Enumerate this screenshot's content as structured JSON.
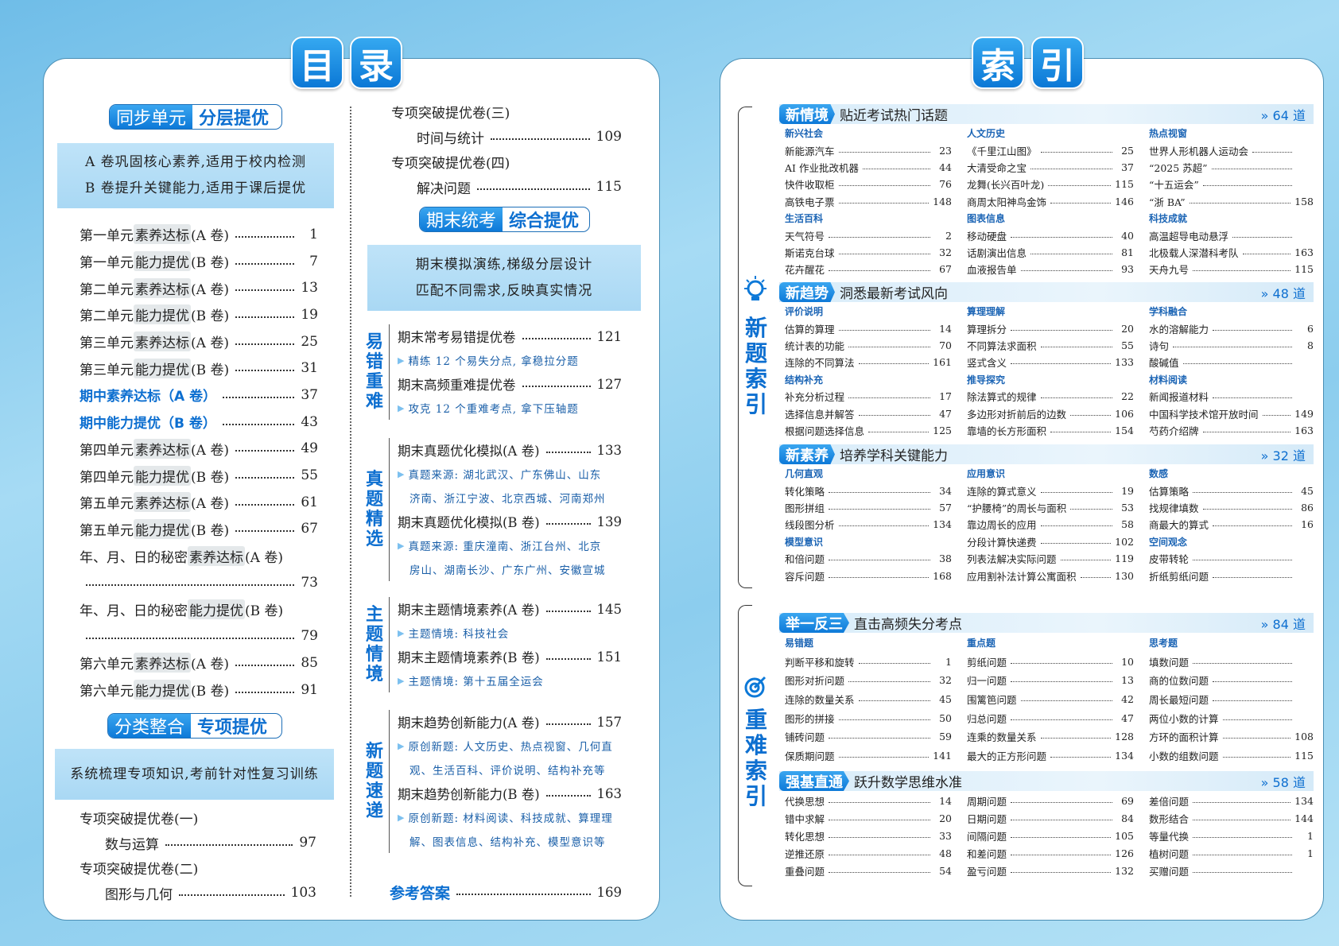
{
  "toc": {
    "title": [
      "目",
      "录"
    ],
    "sec1": {
      "a": "同步单元",
      "b": "分层提优"
    },
    "sec1_box": [
      "A 卷巩固核心素养,适用于校内检测",
      "B 卷提升关键能力,适用于课后提优"
    ],
    "units": [
      {
        "pre": "第一单元 ",
        "tag": "素养达标",
        "suf": "(A 卷)",
        "page": "1"
      },
      {
        "pre": "第一单元 ",
        "tag": "能力提优",
        "suf": "(B 卷)",
        "page": "7"
      },
      {
        "pre": "第二单元 ",
        "tag": "素养达标",
        "suf": "(A 卷)",
        "page": "13"
      },
      {
        "pre": "第二单元 ",
        "tag": "能力提优",
        "suf": "(B 卷)",
        "page": "19"
      },
      {
        "pre": "第三单元 ",
        "tag": "素养达标",
        "suf": "(A 卷)",
        "page": "25"
      },
      {
        "pre": "第三单元 ",
        "tag": "能力提优",
        "suf": "(B 卷)",
        "page": "31"
      },
      {
        "pre": "期中素养达标（A 卷）",
        "tag": "",
        "suf": "",
        "page": "37",
        "blue": true
      },
      {
        "pre": "期中能力提优（B 卷）",
        "tag": "",
        "suf": "",
        "page": "43",
        "blue": true
      },
      {
        "pre": "第四单元 ",
        "tag": "素养达标",
        "suf": "(A 卷)",
        "page": "49"
      },
      {
        "pre": "第四单元 ",
        "tag": "能力提优",
        "suf": "(B 卷)",
        "page": "55"
      },
      {
        "pre": "第五单元 ",
        "tag": "素养达标",
        "suf": "(A 卷)",
        "page": "61"
      },
      {
        "pre": "第五单元 ",
        "tag": "能力提优",
        "suf": "(B 卷)",
        "page": "67"
      },
      {
        "pre": "年、月、日的秘密 ",
        "tag": "素养达标",
        "suf": "(A 卷)",
        "page": "73",
        "wrap": true
      },
      {
        "pre": "年、月、日的秘密 ",
        "tag": "能力提优",
        "suf": "(B 卷)",
        "page": "79",
        "wrap": true
      },
      {
        "pre": "第六单元 ",
        "tag": "素养达标",
        "suf": "(A 卷)",
        "page": "85"
      },
      {
        "pre": "第六单元 ",
        "tag": "能力提优",
        "suf": "(B 卷)",
        "page": "91"
      }
    ],
    "sec2": {
      "a": "分类整合",
      "b": "专项提优"
    },
    "sec2_box": [
      "系统梳理专项知识,考前针对性复习训练"
    ],
    "special_left": [
      {
        "title": "专项突破提优卷(一)",
        "sub": "数与运算",
        "page": "97"
      },
      {
        "title": "专项突破提优卷(二)",
        "sub": "图形与几何",
        "page": "103"
      }
    ],
    "special_right": [
      {
        "title": "专项突破提优卷(三)",
        "sub": "时间与统计",
        "page": "109"
      },
      {
        "title": "专项突破提优卷(四)",
        "sub": "解决问题",
        "page": "115"
      }
    ],
    "sec3": {
      "a": "期末统考",
      "b": "综合提优"
    },
    "sec3_box": [
      "期末模拟演练,梯级分层设计",
      "匹配不同需求,反映真实情况"
    ],
    "groups": [
      {
        "label": "易错重难",
        "items": [
          {
            "title": "期末常考易错提优卷",
            "page": "121",
            "notes": [
              "精练 12 个易失分点, 拿稳拉分题"
            ]
          },
          {
            "title": "期末高频重难提优卷",
            "page": "127",
            "notes": [
              "攻克 12 个重难考点, 拿下压轴题"
            ]
          }
        ]
      },
      {
        "label": "真题精选",
        "items": [
          {
            "title": "期末真题优化模拟(A 卷)",
            "page": "133",
            "notes": [
              "真题来源: 湖北武汉、广东佛山、山东",
              "济南、浙江宁波、北京西城、河南郑州"
            ]
          },
          {
            "title": "期末真题优化模拟(B 卷)",
            "page": "139",
            "notes": [
              "真题来源: 重庆潼南、浙江台州、北京",
              "房山、湖南长沙、广东广州、安徽宣城"
            ]
          }
        ]
      },
      {
        "label": "主题情境",
        "items": [
          {
            "title": "期末主题情境素养(A 卷)",
            "page": "145",
            "notes": [
              "主题情境: 科技社会"
            ]
          },
          {
            "title": "期末主题情境素养(B 卷)",
            "page": "151",
            "notes": [
              "主题情境: 第十五届全运会"
            ]
          }
        ]
      },
      {
        "label": "新题速递",
        "items": [
          {
            "title": "期末趋势创新能力(A 卷)",
            "page": "157",
            "notes": [
              "原创新题: 人文历史、热点视窗、几何直",
              "观、生活百科、评价说明、结构补充等"
            ]
          },
          {
            "title": "期末趋势创新能力(B 卷)",
            "page": "163",
            "notes": [
              "原创新题: 材料阅读、科技成就、算理理",
              "解、图表信息、结构补充、模型意识等"
            ]
          }
        ]
      }
    ],
    "answers": {
      "label": "参考答案",
      "page": "169"
    }
  },
  "index": {
    "title": [
      "索",
      "引"
    ],
    "side_labels": [
      "新题索引",
      "重难索引"
    ],
    "icons": [
      "lightbulb-icon",
      "target-icon"
    ],
    "sections": [
      {
        "tag": "新情境",
        "desc": "贴近考试热门话题",
        "count": "» 64 道",
        "columns": [
          [
            {
              "cat": "新兴社会"
            },
            {
              "t": "新能源汽车",
              "p": "23"
            },
            {
              "t": "AI 作业批改机器",
              "p": "44"
            },
            {
              "t": "快件收取柜",
              "p": "76"
            },
            {
              "t": "高铁电子票",
              "p": "148"
            },
            {
              "cat": "生活百科"
            },
            {
              "t": "天气符号",
              "p": "2"
            },
            {
              "t": "斯诺克台球",
              "p": "32"
            },
            {
              "t": "花卉醒花",
              "p": "67"
            }
          ],
          [
            {
              "cat": "人文历史"
            },
            {
              "t": "《千里江山图》",
              "p": "25"
            },
            {
              "t": "大清受命之宝",
              "p": "37"
            },
            {
              "t": "龙舞(长兴百叶龙)",
              "p": "115"
            },
            {
              "t": "商周太阳神鸟金饰",
              "p": "146"
            },
            {
              "cat": "图表信息"
            },
            {
              "t": "移动硬盘",
              "p": "40"
            },
            {
              "t": "话剧演出信息",
              "p": "81"
            },
            {
              "t": "血液报告单",
              "p": "93"
            }
          ],
          [
            {
              "cat": "热点视窗"
            },
            {
              "t": "世界人形机器人运动会",
              "p": ""
            },
            {
              "t": "“2025 苏超”",
              "p": ""
            },
            {
              "t": "“十五运会”",
              "p": ""
            },
            {
              "t": "“浙 BA”",
              "p": "158"
            },
            {
              "cat": "科技成就"
            },
            {
              "t": "高温超导电动悬浮",
              "p": ""
            },
            {
              "t": "北极载人深潜科考队",
              "p": "163"
            },
            {
              "t": "天舟九号",
              "p": "115"
            }
          ]
        ]
      },
      {
        "tag": "新趋势",
        "desc": "洞悉最新考试风向",
        "count": "» 48 道",
        "columns": [
          [
            {
              "cat": "评价说明"
            },
            {
              "t": "估算的算理",
              "p": "14"
            },
            {
              "t": "统计表的功能",
              "p": "70"
            },
            {
              "t": "连除的不同算法",
              "p": "161"
            },
            {
              "cat": "结构补充"
            },
            {
              "t": "补充分析过程",
              "p": "17"
            },
            {
              "t": "选择信息并解答",
              "p": "47"
            },
            {
              "t": "根据问题选择信息",
              "p": "125"
            }
          ],
          [
            {
              "cat": "算理理解"
            },
            {
              "t": "算理拆分",
              "p": "20"
            },
            {
              "t": "不同算法求面积",
              "p": "55"
            },
            {
              "t": "竖式含义",
              "p": "133"
            },
            {
              "cat": "推导探究"
            },
            {
              "t": "除法算式的规律",
              "p": "22"
            },
            {
              "t": "多边形对折前后的边数",
              "p": "106"
            },
            {
              "t": "靠墙的长方形面积",
              "p": "154"
            }
          ],
          [
            {
              "cat": "学科融合"
            },
            {
              "t": "水的溶解能力",
              "p": "6"
            },
            {
              "t": "诗句",
              "p": "8"
            },
            {
              "t": "酸碱值",
              "p": ""
            },
            {
              "cat": "材料阅读"
            },
            {
              "t": "新闻报道材料",
              "p": ""
            },
            {
              "t": "中国科学技术馆开放时间",
              "p": "149"
            },
            {
              "t": "芍药介绍牌",
              "p": "163"
            }
          ]
        ]
      },
      {
        "tag": "新素养",
        "desc": "培养学科关键能力",
        "count": "» 32 道",
        "columns": [
          [
            {
              "cat": "几何直观"
            },
            {
              "t": "转化策略",
              "p": "34"
            },
            {
              "t": "图形拼组",
              "p": "57"
            },
            {
              "t": "线段图分析",
              "p": "134"
            },
            {
              "cat": "模型意识"
            },
            {
              "t": "和倍问题",
              "p": "38"
            },
            {
              "t": "容斥问题",
              "p": "168"
            }
          ],
          [
            {
              "cat": "应用意识"
            },
            {
              "t": "连除的算式意义",
              "p": "19"
            },
            {
              "t": "“护腰椅”的周长与面积",
              "p": "53"
            },
            {
              "t": "靠边周长的应用",
              "p": "58"
            },
            {
              "t": "分段计算快递费",
              "p": "102"
            },
            {
              "t": "列表法解决实际问题",
              "p": "119"
            },
            {
              "t": "应用割补法计算公寓面积",
              "p": "130"
            }
          ],
          [
            {
              "cat": "数感"
            },
            {
              "t": "估算策略",
              "p": "45"
            },
            {
              "t": "找规律填数",
              "p": "86"
            },
            {
              "t": "商最大的算式",
              "p": "16"
            },
            {
              "cat": "空间观念"
            },
            {
              "t": "皮带转轮",
              "p": ""
            },
            {
              "t": "折纸剪纸问题",
              "p": ""
            }
          ]
        ]
      },
      {
        "tag": "举一反三",
        "desc": "直击高频失分考点",
        "count": "» 84 道",
        "columns": [
          [
            {
              "cat": "易错题"
            },
            {
              "t": "判断平移和旋转",
              "p": "1"
            },
            {
              "t": "图形对折问题",
              "p": "32"
            },
            {
              "t": "连除的数量关系",
              "p": "45"
            },
            {
              "t": "图形的拼接",
              "p": "50"
            },
            {
              "t": "铺砖问题",
              "p": "59"
            },
            {
              "t": "保质期问题",
              "p": "141"
            }
          ],
          [
            {
              "cat": "重点题"
            },
            {
              "t": "剪纸问题",
              "p": "10"
            },
            {
              "t": "归一问题",
              "p": "13"
            },
            {
              "t": "围篱笆问题",
              "p": "42"
            },
            {
              "t": "归总问题",
              "p": "47"
            },
            {
              "t": "连乘的数量关系",
              "p": "128"
            },
            {
              "t": "最大的正方形问题",
              "p": "134"
            }
          ],
          [
            {
              "cat": "思考题"
            },
            {
              "t": "填数问题",
              "p": ""
            },
            {
              "t": "商的位数问题",
              "p": ""
            },
            {
              "t": "周长最短问题",
              "p": ""
            },
            {
              "t": "两位小数的计算",
              "p": ""
            },
            {
              "t": "方环的面积计算",
              "p": "108"
            },
            {
              "t": "小数的组数问题",
              "p": "115"
            }
          ]
        ]
      },
      {
        "tag": "强基直通",
        "desc": "跃升数学思维水准",
        "count": "» 58 道",
        "columns": [
          [
            {
              "t": "代换思想",
              "p": "14"
            },
            {
              "t": "错中求解",
              "p": "20"
            },
            {
              "t": "转化思想",
              "p": "33"
            },
            {
              "t": "逆推还原",
              "p": "48"
            },
            {
              "t": "重叠问题",
              "p": "54"
            }
          ],
          [
            {
              "t": "周期问题",
              "p": "69"
            },
            {
              "t": "日期问题",
              "p": "84"
            },
            {
              "t": "间隔问题",
              "p": "105"
            },
            {
              "t": "和差问题",
              "p": "126"
            },
            {
              "t": "盈亏问题",
              "p": "132"
            }
          ],
          [
            {
              "t": "差倍问题",
              "p": "134"
            },
            {
              "t": "数形结合",
              "p": "144"
            },
            {
              "t": "等量代换",
              "p": "1"
            },
            {
              "t": "植树问题",
              "p": "1"
            },
            {
              "t": "买赠问题",
              "p": ""
            }
          ]
        ]
      }
    ]
  },
  "colors": {
    "accent": "#0d79d8",
    "accent_text": "#0d6fd0",
    "box": "#b3ddf5"
  }
}
